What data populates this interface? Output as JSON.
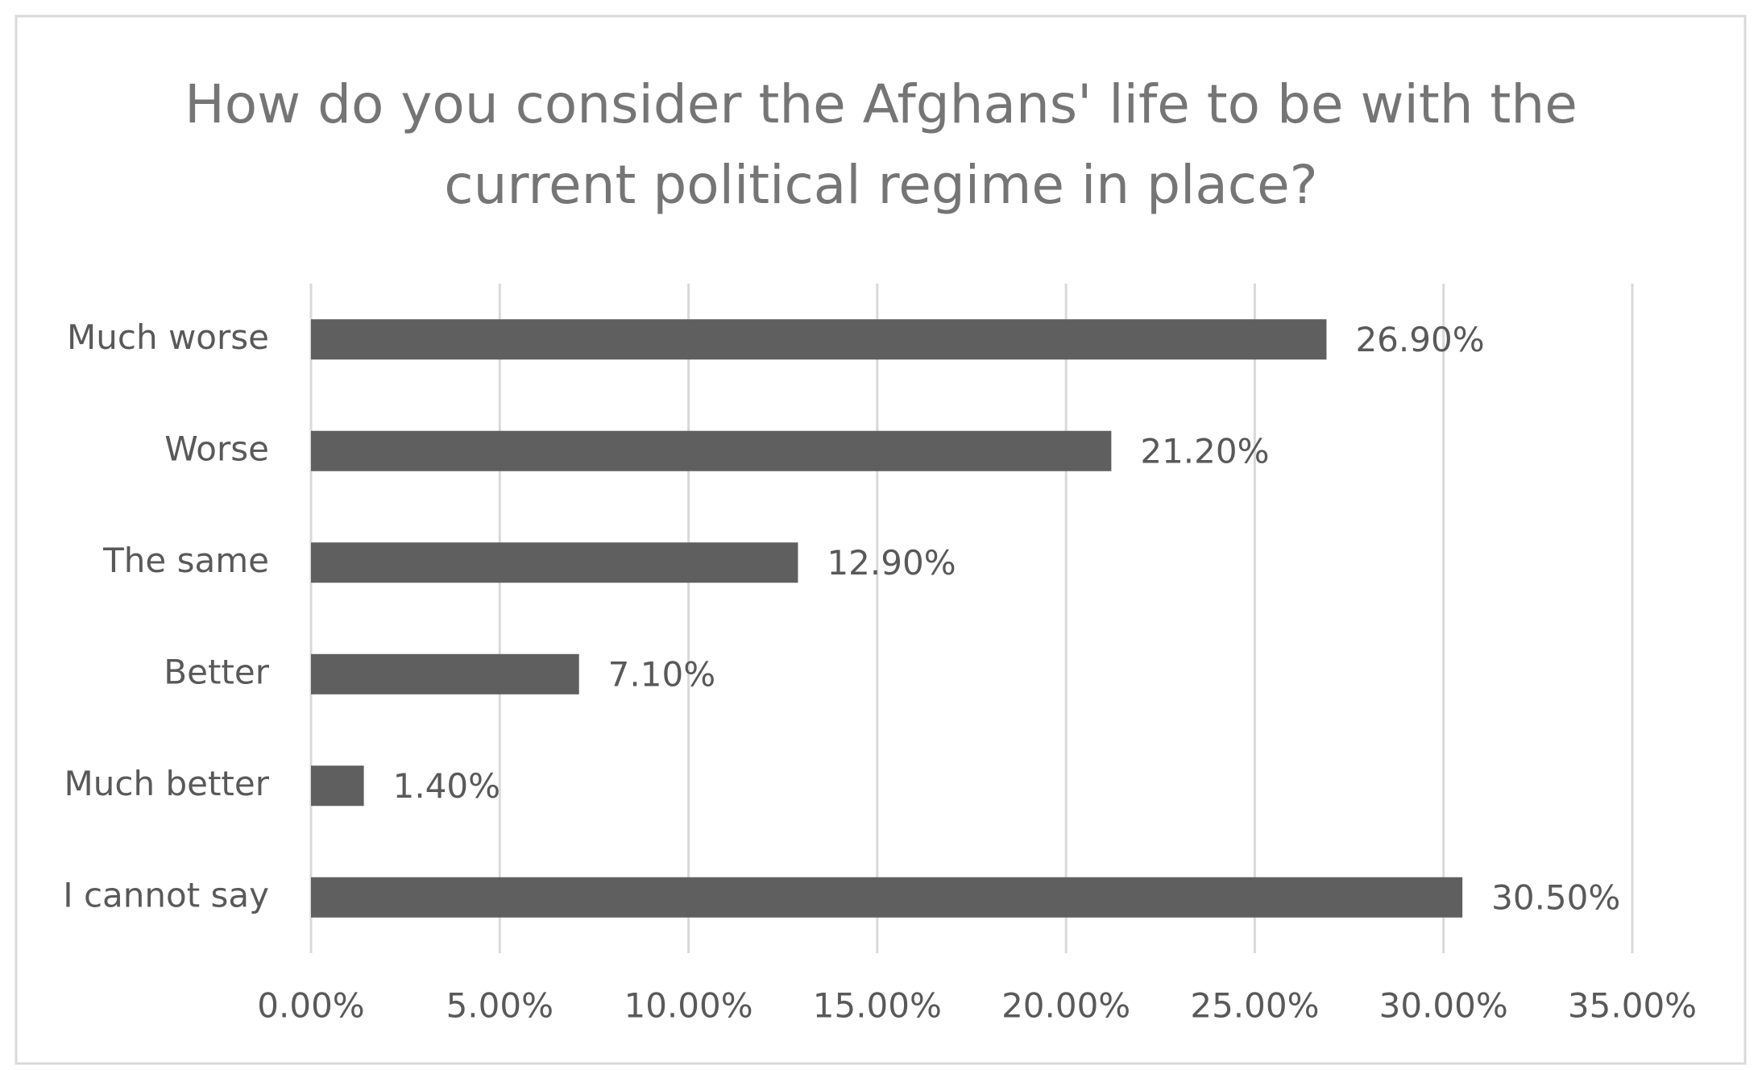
{
  "chart_data": {
    "type": "hbar",
    "title": "How do you consider the Afghans' life to be with the current political regime in place?",
    "categories": [
      "Much worse",
      "Worse",
      "The same",
      "Better",
      "Much better",
      "I cannot say"
    ],
    "values": [
      26.9,
      21.2,
      12.9,
      7.1,
      1.4,
      30.5
    ],
    "value_labels": [
      "26.90%",
      "21.20%",
      "12.90%",
      "7.10%",
      "1.40%",
      "30.50%"
    ],
    "color": "#5f5f5f",
    "xlim": [
      0,
      35
    ],
    "xticks": [
      {
        "value": 0,
        "label": "0.00%"
      },
      {
        "value": 5,
        "label": "5.00%"
      },
      {
        "value": 10,
        "label": "10.00%"
      },
      {
        "value": 15,
        "label": "15.00%"
      },
      {
        "value": 20,
        "label": "20.00%"
      },
      {
        "value": 25,
        "label": "25.00%"
      },
      {
        "value": 30,
        "label": "30.00%"
      },
      {
        "value": 35,
        "label": "35.00%"
      }
    ],
    "grid": true
  }
}
